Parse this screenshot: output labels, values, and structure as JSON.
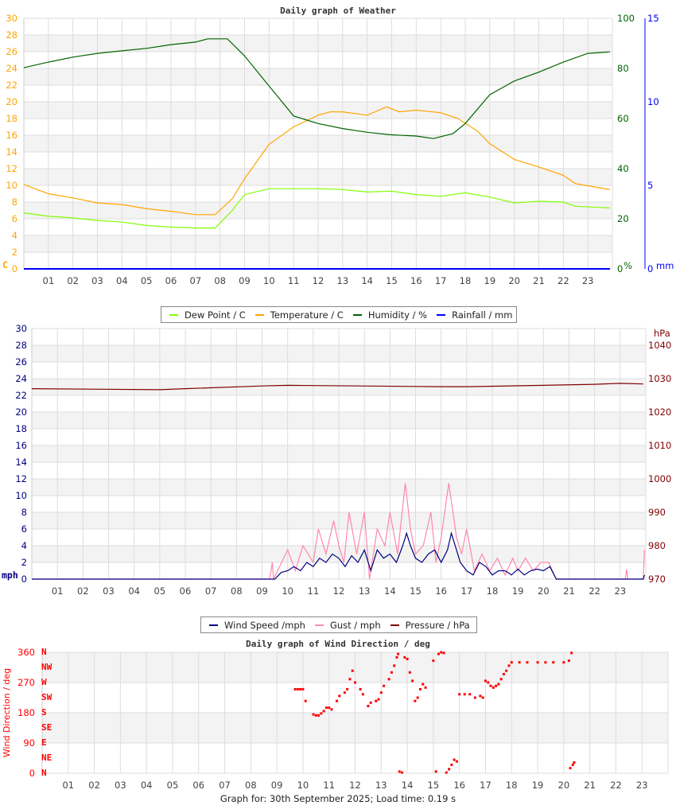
{
  "chart_data": [
    {
      "type": "line",
      "title": "Daily graph of Weather",
      "x_ticks": [
        "01",
        "02",
        "03",
        "04",
        "05",
        "06",
        "07",
        "08",
        "09",
        "10",
        "11",
        "12",
        "13",
        "14",
        "15",
        "16",
        "17",
        "18",
        "19",
        "20",
        "21",
        "22",
        "23"
      ],
      "xlim": [
        0,
        24
      ],
      "grid": true,
      "axes": {
        "left": {
          "unit": "C",
          "range": [
            0,
            30
          ],
          "ticks": [
            "0",
            "2",
            "4",
            "6",
            "8",
            "10",
            "12",
            "14",
            "16",
            "18",
            "20",
            "22",
            "24",
            "26",
            "28",
            "30"
          ],
          "color": "#FFA500"
        },
        "right1": {
          "unit": "%",
          "range": [
            0,
            100
          ],
          "ticks": [
            "0",
            "20",
            "40",
            "60",
            "80",
            "100"
          ],
          "color": "#006400"
        },
        "right2": {
          "unit": "mm",
          "range": [
            0,
            15
          ],
          "ticks": [
            "0",
            "5",
            "10",
            "15"
          ],
          "color": "#0000FF"
        }
      },
      "legend": [
        "Dew Point / C",
        "Temperature / C",
        "Humidity / %",
        "Rainfall / mm"
      ],
      "legend_placement": "bottom",
      "series": [
        {
          "name": "Dew Point / C",
          "axis": "left",
          "color": "#7FFF00",
          "x": [
            0,
            1,
            2,
            3,
            4,
            5,
            6,
            7,
            7.8,
            8.5,
            9,
            10,
            11,
            12,
            13,
            14,
            15,
            16,
            17,
            18,
            19,
            20,
            21,
            22,
            22.5,
            23.9
          ],
          "y": [
            6.7,
            6.3,
            6.1,
            5.8,
            5.6,
            5.2,
            5.0,
            4.9,
            4.9,
            7.0,
            8.9,
            9.6,
            9.6,
            9.6,
            9.5,
            9.2,
            9.3,
            8.9,
            8.7,
            9.1,
            8.6,
            7.9,
            8.1,
            8.0,
            7.5,
            7.3
          ]
        },
        {
          "name": "Temperature / C",
          "axis": "left",
          "color": "#FFA500",
          "x": [
            0,
            1,
            2,
            3,
            4,
            5,
            6,
            7,
            7.8,
            8.5,
            9,
            10,
            11,
            12,
            12.5,
            13,
            14,
            14.8,
            15.3,
            16,
            17,
            17.7,
            18.5,
            19,
            20,
            21,
            22,
            22.5,
            23.9
          ],
          "y": [
            10.1,
            9.0,
            8.5,
            7.9,
            7.7,
            7.2,
            6.9,
            6.5,
            6.5,
            8.4,
            10.8,
            14.9,
            17.0,
            18.4,
            18.8,
            18.8,
            18.4,
            19.4,
            18.8,
            19.0,
            18.7,
            18.0,
            16.5,
            15.0,
            13.1,
            12.2,
            11.2,
            10.2,
            9.5
          ]
        },
        {
          "name": "Humidity / %",
          "axis": "right1",
          "color": "#006400",
          "x": [
            0,
            1,
            2,
            3,
            4,
            5,
            6,
            7,
            7.5,
            8.3,
            9,
            10,
            11,
            12,
            13,
            14,
            15,
            16,
            16.7,
            17.5,
            18,
            19,
            20,
            21,
            22,
            23,
            23.9
          ],
          "y": [
            80.3,
            82.5,
            84.5,
            86,
            87,
            88,
            89.5,
            90.5,
            91.8,
            91.8,
            85,
            73,
            61,
            58,
            56,
            54.5,
            53.5,
            53,
            52,
            54,
            58,
            69.5,
            75,
            78.5,
            82.5,
            86,
            86.6
          ]
        },
        {
          "name": "Rainfall / mm",
          "axis": "right2",
          "color": "#0000FF",
          "x": [
            0,
            23.9
          ],
          "y": [
            0,
            0
          ]
        }
      ]
    },
    {
      "type": "line",
      "title": "",
      "x_ticks": [
        "01",
        "02",
        "03",
        "04",
        "05",
        "06",
        "07",
        "08",
        "09",
        "10",
        "11",
        "12",
        "13",
        "14",
        "15",
        "16",
        "17",
        "18",
        "19",
        "20",
        "21",
        "22",
        "23"
      ],
      "xlim": [
        0,
        24
      ],
      "grid": true,
      "axes": {
        "left": {
          "unit": "mph",
          "range": [
            0,
            30
          ],
          "ticks": [
            "0",
            "2",
            "4",
            "6",
            "8",
            "10",
            "12",
            "14",
            "16",
            "18",
            "20",
            "22",
            "24",
            "26",
            "28",
            "30"
          ],
          "color": "#000080"
        },
        "right1": {
          "unit": "hPa",
          "range": [
            970,
            1045
          ],
          "ticks": [
            "970",
            "980",
            "990",
            "1000",
            "1010",
            "1020",
            "1030",
            "1040"
          ],
          "color": "#800000"
        }
      },
      "legend": [
        "Wind Speed /mph",
        "Gust / mph",
        "Pressure / hPa"
      ],
      "legend_placement": "bottom",
      "series": [
        {
          "name": "Gust / mph",
          "axis": "left",
          "color": "#FF88AA",
          "x": [
            0,
            9.3,
            9.4,
            9.45,
            10,
            10.3,
            10.6,
            11,
            11.2,
            11.5,
            11.8,
            12,
            12.2,
            12.4,
            12.7,
            13,
            13.2,
            13.5,
            13.8,
            14,
            14.3,
            14.6,
            14.8,
            15,
            15.3,
            15.6,
            15.8,
            16,
            16.3,
            16.6,
            16.8,
            17,
            17.3,
            17.6,
            17.9,
            18.2,
            18.5,
            18.8,
            19,
            19.3,
            19.6,
            19.9,
            20.2,
            20.5,
            23.2,
            23.25,
            23.3,
            23.9,
            23.95
          ],
          "y": [
            0,
            0,
            2,
            0,
            3.5,
            1,
            4,
            2,
            6,
            3,
            7,
            4,
            2,
            8,
            3,
            8,
            0,
            6,
            4,
            8,
            3,
            11.5,
            6,
            3,
            4,
            8,
            2,
            5,
            11.5,
            5,
            3,
            6,
            1,
            3,
            1,
            2.5,
            0.5,
            2.5,
            1,
            2.5,
            1,
            2,
            2,
            0,
            0,
            1.2,
            0,
            0,
            3.5
          ]
        },
        {
          "name": "Wind Speed /mph",
          "axis": "left",
          "color": "#000080",
          "x": [
            0,
            9.5,
            9.75,
            10,
            10.25,
            10.5,
            10.75,
            11,
            11.25,
            11.5,
            11.75,
            12,
            12.25,
            12.5,
            12.75,
            13,
            13.25,
            13.5,
            13.75,
            14,
            14.25,
            14.5,
            14.65,
            14.8,
            15,
            15.25,
            15.5,
            15.75,
            16,
            16.25,
            16.4,
            16.6,
            16.75,
            17,
            17.25,
            17.5,
            17.75,
            18,
            18.25,
            18.5,
            18.75,
            19,
            19.25,
            19.5,
            19.75,
            20,
            20.25,
            20.5,
            23.9,
            23.95
          ],
          "y": [
            0,
            0,
            0.8,
            1,
            1.5,
            1,
            2,
            1.5,
            2.5,
            2,
            3,
            2.5,
            1.5,
            2.8,
            2,
            3.5,
            1,
            3.5,
            2.5,
            3,
            2,
            4,
            5.5,
            4,
            2.5,
            2,
            3,
            3.5,
            2,
            3.5,
            5.5,
            3.5,
            2,
            1,
            0.5,
            2,
            1.5,
            0.5,
            1,
            1,
            0.5,
            1.2,
            0.5,
            1,
            1.2,
            1,
            1.5,
            0,
            0,
            0.5
          ]
        },
        {
          "name": "Pressure / hPa",
          "axis": "right1",
          "color": "#800000",
          "x": [
            0,
            5,
            6,
            9,
            10,
            16,
            17,
            20,
            22,
            23,
            23.9
          ],
          "y": [
            1027,
            1026.7,
            1027,
            1027.8,
            1028,
            1027.6,
            1027.6,
            1028,
            1028.3,
            1028.6,
            1028.4
          ]
        }
      ]
    },
    {
      "type": "scatter",
      "title": "Daily graph of Wind Direction / deg",
      "x_ticks": [
        "01",
        "02",
        "03",
        "04",
        "05",
        "06",
        "07",
        "08",
        "09",
        "10",
        "11",
        "12",
        "13",
        "14",
        "15",
        "16",
        "17",
        "18",
        "19",
        "20",
        "21",
        "22",
        "23"
      ],
      "xlim": [
        0,
        24
      ],
      "grid": true,
      "axes": {
        "left": {
          "unit": "Wind Direction / deg",
          "range": [
            0,
            360
          ],
          "ticks": [
            "0",
            "90",
            "180",
            "270",
            "360"
          ],
          "color": "#FF0000"
        },
        "compass": [
          "N",
          "NE",
          "E",
          "SE",
          "S",
          "SW",
          "W",
          "NW",
          "N"
        ]
      },
      "series": [
        {
          "color": "#FF0000",
          "x": [
            9.7,
            9.8,
            9.9,
            10.0,
            10.1,
            10.4,
            10.5,
            10.6,
            10.7,
            10.8,
            10.9,
            11.0,
            11.1,
            11.3,
            11.4,
            11.6,
            11.7,
            11.8,
            11.9,
            12.0,
            12.2,
            12.3,
            12.5,
            12.6,
            12.8,
            12.9,
            13.0,
            13.1,
            13.3,
            13.4,
            13.5,
            13.6,
            13.65,
            13.7,
            13.8,
            13.9,
            14.0,
            14.1,
            14.2,
            14.3,
            14.4,
            14.5,
            14.6,
            14.7,
            15.0,
            15.1,
            15.2,
            15.3,
            15.4,
            15.5,
            15.6,
            15.7,
            15.8,
            15.9,
            16.0,
            16.2,
            16.4,
            16.6,
            16.8,
            16.9,
            17.0,
            17.1,
            17.2,
            17.3,
            17.4,
            17.5,
            17.6,
            17.7,
            17.8,
            17.9,
            18.0,
            18.3,
            18.6,
            19.0,
            19.3,
            19.6,
            20.0,
            20.2,
            20.25,
            20.3,
            20.35,
            20.4
          ],
          "y": [
            250,
            250,
            250,
            250,
            215,
            175,
            172,
            172,
            178,
            185,
            195,
            195,
            190,
            215,
            230,
            240,
            250,
            280,
            305,
            270,
            250,
            235,
            200,
            210,
            215,
            220,
            240,
            260,
            280,
            300,
            320,
            345,
            355,
            5,
            2,
            345,
            340,
            300,
            275,
            215,
            225,
            250,
            265,
            255,
            335,
            5,
            355,
            360,
            358,
            2,
            12,
            25,
            40,
            35,
            235,
            235,
            235,
            225,
            230,
            225,
            275,
            270,
            260,
            255,
            260,
            265,
            280,
            295,
            305,
            320,
            330,
            330,
            330,
            330,
            330,
            330,
            330,
            335,
            15,
            358,
            25,
            32
          ]
        }
      ]
    }
  ],
  "footer": "Graph for: 30th September 2025; Load time: 0.19 s"
}
